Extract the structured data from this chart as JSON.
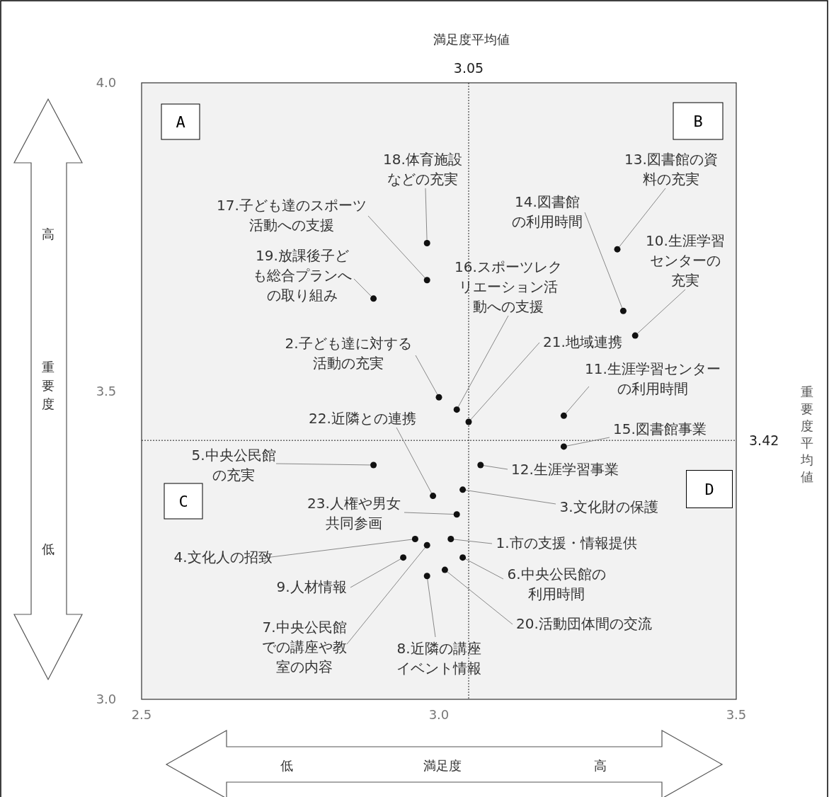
{
  "chart_data": {
    "type": "scatter",
    "xlabel": "満足度",
    "ylabel": "重要度",
    "color": "#111111",
    "marker": "circle",
    "xlim": [
      2.5,
      3.5
    ],
    "ylim": [
      3.0,
      4.0
    ],
    "xticks": [
      {
        "value": 2.5,
        "label": "2.5"
      },
      {
        "value": 3.0,
        "label": "3.0"
      },
      {
        "value": 3.5,
        "label": "3.5"
      }
    ],
    "yticks": [
      {
        "value": 3.0,
        "label": "3.0"
      },
      {
        "value": 3.5,
        "label": "3.5"
      },
      {
        "value": 4.0,
        "label": "4.0"
      }
    ],
    "x": [
      3.02,
      3.0,
      3.04,
      2.96,
      2.89,
      3.04,
      2.98,
      2.98,
      2.94,
      3.33,
      3.21,
      3.07,
      3.3,
      3.31,
      3.21,
      3.03,
      2.98,
      2.98,
      2.89,
      3.01,
      3.05,
      2.99,
      3.03
    ],
    "values": [
      3.26,
      3.49,
      3.34,
      3.26,
      3.38,
      3.23,
      3.25,
      3.2,
      3.23,
      3.59,
      3.46,
      3.38,
      3.73,
      3.63,
      3.41,
      3.47,
      3.68,
      3.74,
      3.65,
      3.21,
      3.45,
      3.33,
      3.3
    ],
    "ref_lines": [
      {
        "axis": "x",
        "value": 3.05,
        "label": "3.05",
        "color": "#222222",
        "line_style": "dotted"
      },
      {
        "axis": "y",
        "value": 3.42,
        "label": "3.42",
        "color": "#222222",
        "line_style": "dotted"
      }
    ],
    "annotations": [
      {
        "text": "1.市の支援・情報提供",
        "x": 3.02,
        "y": 3.26
      },
      {
        "text": "2.子ども達に対する活動の充実",
        "x": 3.0,
        "y": 3.49
      },
      {
        "text": "3.文化財の保護",
        "x": 3.04,
        "y": 3.34
      },
      {
        "text": "4.文化人の招致",
        "x": 2.96,
        "y": 3.26
      },
      {
        "text": "5.中央公民館の充実",
        "x": 2.89,
        "y": 3.38
      },
      {
        "text": "6.中央公民館の利用時間",
        "x": 3.04,
        "y": 3.23
      },
      {
        "text": "7.中央公民館での講座や教室の内容",
        "x": 2.98,
        "y": 3.25
      },
      {
        "text": "8.近隣の講座イベント情報",
        "x": 2.98,
        "y": 3.2
      },
      {
        "text": "9.人材情報",
        "x": 2.94,
        "y": 3.23
      },
      {
        "text": "10.生涯学習センターの充実",
        "x": 3.33,
        "y": 3.59
      },
      {
        "text": "11.生涯学習センターの利用時間",
        "x": 3.21,
        "y": 3.46
      },
      {
        "text": "12.生涯学習事業",
        "x": 3.07,
        "y": 3.38
      },
      {
        "text": "13.図書館の資料の充実",
        "x": 3.3,
        "y": 3.73
      },
      {
        "text": "14.図書館の利用時間",
        "x": 3.31,
        "y": 3.63
      },
      {
        "text": "15.図書館事業",
        "x": 3.21,
        "y": 3.41
      },
      {
        "text": "16.スポーツレクリエーション活動への支援",
        "x": 3.03,
        "y": 3.47
      },
      {
        "text": "17.子ども達のスポーツ活動への支援",
        "x": 2.98,
        "y": 3.68
      },
      {
        "text": "18.体育施設などの充実",
        "x": 2.98,
        "y": 3.74
      },
      {
        "text": "19.放課後子ども総合プランへの取り組み",
        "x": 2.89,
        "y": 3.65
      },
      {
        "text": "20.活動団体間の交流",
        "x": 3.01,
        "y": 3.21
      },
      {
        "text": "21.地域連携",
        "x": 3.05,
        "y": 3.45
      },
      {
        "text": "22.近隣との連携",
        "x": 2.99,
        "y": 3.33
      },
      {
        "text": "23.人権や男女共同参画",
        "x": 3.03,
        "y": 3.3
      },
      "A",
      "B",
      "C",
      "D",
      "満足度平均値",
      "重要度平均値",
      "低",
      "高",
      "高",
      "低"
    ]
  }
}
